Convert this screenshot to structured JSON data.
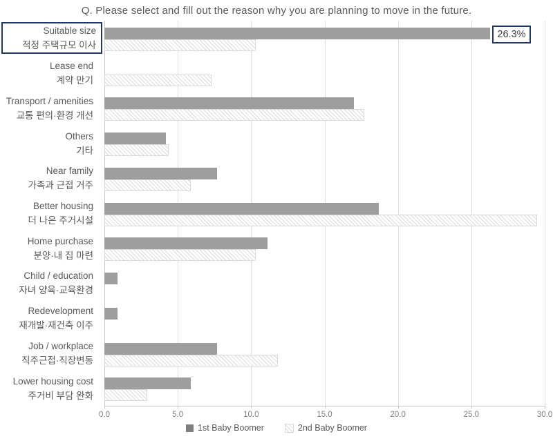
{
  "title": "Q. Please select and fill out the reason why you are planning to move in the future.",
  "chart_data": {
    "type": "bar",
    "orientation": "horizontal",
    "title": "Q. Please select and fill out the reason why you are planning to move in the future.",
    "categories": [
      {
        "en": "Suitable size",
        "ko": "적정 주택규모 이사",
        "highlighted": true
      },
      {
        "en": "Lease end",
        "ko": "계약 만기",
        "highlighted": false
      },
      {
        "en": "Transport / amenities",
        "ko": "교통 편의·환경 개선",
        "highlighted": false
      },
      {
        "en": "Others",
        "ko": "기타",
        "highlighted": false
      },
      {
        "en": "Near family",
        "ko": "가족과 근접 거주",
        "highlighted": false
      },
      {
        "en": "Better housing",
        "ko": "더 나은 주거시설",
        "highlighted": false
      },
      {
        "en": "Home purchase",
        "ko": "분양·내 집 마련",
        "highlighted": false
      },
      {
        "en": "Child / education",
        "ko": "자녀 양육·교육환경",
        "highlighted": false
      },
      {
        "en": "Redevelopment",
        "ko": "재개발·재건축 이주",
        "highlighted": false
      },
      {
        "en": "Job / workplace",
        "ko": "직주근접·직장변동",
        "highlighted": false
      },
      {
        "en": "Lower housing cost",
        "ko": "주거비 부담 완화",
        "highlighted": false
      }
    ],
    "series": [
      {
        "name": "1st Baby Boomer",
        "style": "solid",
        "values": [
          26.3,
          0,
          17.0,
          4.2,
          7.7,
          18.7,
          11.1,
          0.9,
          0.9,
          7.7,
          5.9
        ]
      },
      {
        "name": "2nd Baby Boomer",
        "style": "hatched",
        "values": [
          10.3,
          7.3,
          17.7,
          4.4,
          5.9,
          29.5,
          10.3,
          0,
          0,
          11.8,
          2.9
        ]
      }
    ],
    "data_labels": [
      {
        "category_index": 0,
        "series_index": 0,
        "text": "26.3%"
      }
    ],
    "xlim": [
      0,
      30
    ],
    "x_ticks": [
      "0.0",
      "5.0",
      "10.0",
      "15.0",
      "20.0",
      "25.0",
      "30.0"
    ],
    "grid": true,
    "legend_position": "bottom"
  },
  "colors": {
    "bar_solid": "#9E9E9E",
    "legend_solid": "#7F7F7F",
    "hatch_line": "#DCDCDC",
    "hatch_background": "#FFFFFF",
    "hatch_border": "#D9D9D9",
    "highlight_border": "#1F3864",
    "gridline": "#DEDEDE",
    "axis": "#C6C6C6",
    "label_text": "#595959",
    "tick_text": "#7F7F7F"
  }
}
